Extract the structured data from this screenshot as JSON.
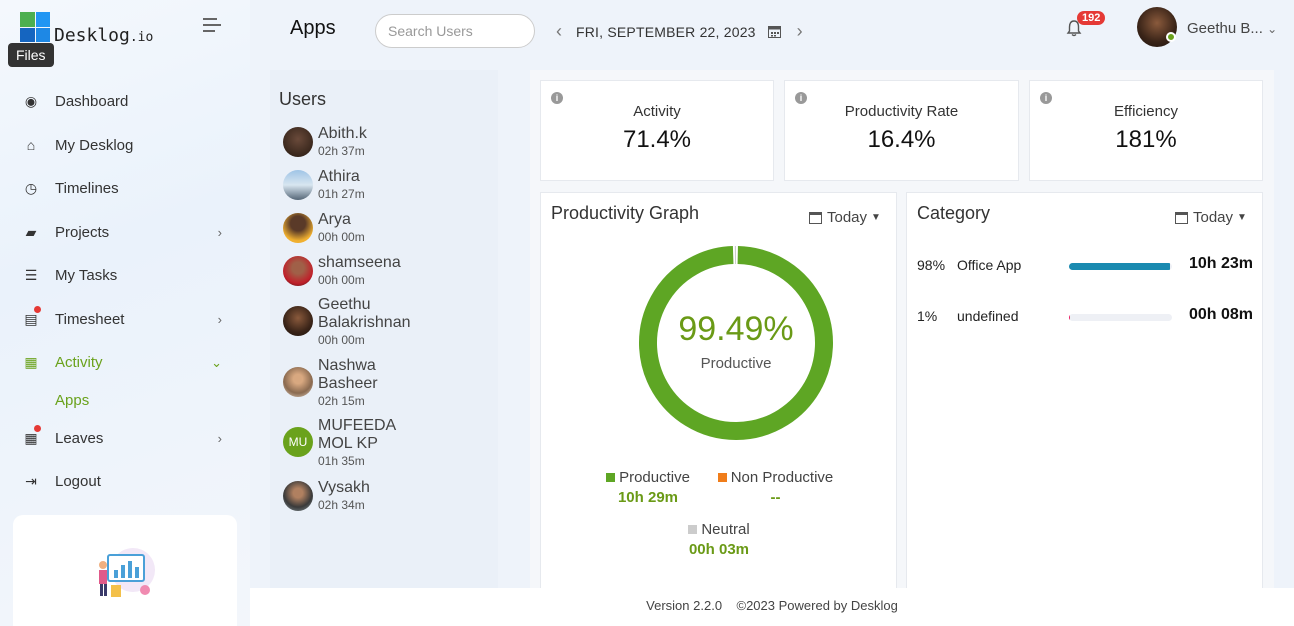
{
  "logo": {
    "name": "Desklog",
    "tld": ".io"
  },
  "tooltip": "Files",
  "nav": {
    "items": [
      {
        "label": "Dashboard"
      },
      {
        "label": "My Desklog"
      },
      {
        "label": "Timelines"
      },
      {
        "label": "Projects"
      },
      {
        "label": "My Tasks"
      },
      {
        "label": "Timesheet"
      },
      {
        "label": "Activity"
      },
      {
        "label": "Apps"
      },
      {
        "label": "Leaves"
      },
      {
        "label": "Logout"
      }
    ]
  },
  "header": {
    "title": "Apps",
    "search_placeholder": "Search Users",
    "date": "FRI, SEPTEMBER 22, 2023",
    "notifications": "192",
    "user": "Geethu B..."
  },
  "users": {
    "title": "Users",
    "list": [
      {
        "name": "Abith.k",
        "time": "02h 37m"
      },
      {
        "name": "Athira",
        "time": "01h 27m"
      },
      {
        "name": "Arya",
        "time": "00h 00m"
      },
      {
        "name": "shamseena",
        "time": "00h 00m"
      },
      {
        "name": "Geethu Balakrishnan",
        "time": "00h 00m"
      },
      {
        "name": "Nashwa Basheer",
        "time": "02h 15m"
      },
      {
        "name": "MUFEEDA MOL KP",
        "time": "01h 35m",
        "initials": "MU"
      },
      {
        "name": "Vysakh",
        "time": "02h 34m"
      }
    ]
  },
  "stats": [
    {
      "title": "Activity",
      "value": "71.4%"
    },
    {
      "title": "Productivity Rate",
      "value": "16.4%"
    },
    {
      "title": "Efficiency",
      "value": "181%"
    }
  ],
  "productivity": {
    "title": "Productivity Graph",
    "range": "Today",
    "center_value": "99.49%",
    "center_label": "Productive",
    "legend": [
      {
        "label": "Productive",
        "value": "10h 29m",
        "color": "#5ea624"
      },
      {
        "label": "Non Productive",
        "value": "--",
        "color": "#f07d1a"
      },
      {
        "label": "Neutral",
        "value": "00h 03m",
        "color": "#cccccc"
      }
    ]
  },
  "chart_data": {
    "type": "pie",
    "categories": [
      "Productive",
      "Neutral"
    ],
    "values": [
      99.49,
      0.51
    ]
  },
  "category": {
    "title": "Category",
    "range": "Today",
    "rows": [
      {
        "pct": "98%",
        "name": "Office App",
        "duration": "10h 23m",
        "fill": 0.98,
        "color": "#1a8ab0"
      },
      {
        "pct": "1%",
        "name": "undefined",
        "duration": "00h 08m",
        "fill": 0.01,
        "color": "#e91e63"
      }
    ]
  },
  "footer": {
    "version": "Version 2.2.0",
    "copyright": "©2023 Powered by Desklog"
  }
}
